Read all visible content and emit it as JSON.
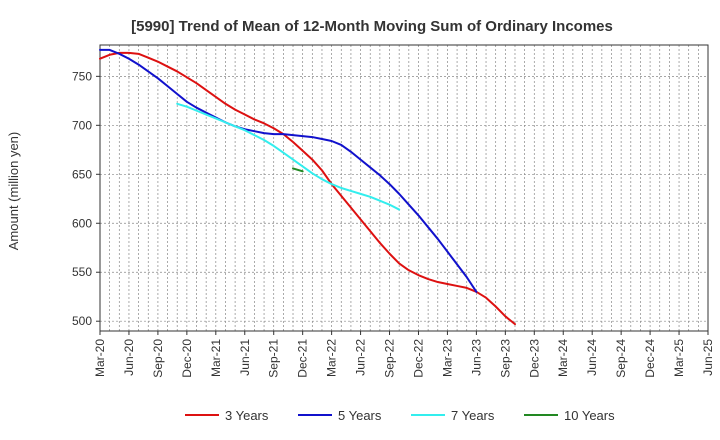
{
  "chart_data": {
    "type": "line",
    "title": "[5990]  Trend of Mean of 12-Month Moving Sum of Ordinary Incomes",
    "xlabel": "",
    "ylabel": "Amount (million yen)",
    "ylim": [
      490,
      782
    ],
    "yticks": [
      500,
      550,
      600,
      650,
      700,
      750
    ],
    "x_tick_labels": [
      "Mar-20",
      "Jun-20",
      "Sep-20",
      "Dec-20",
      "Mar-21",
      "Jun-21",
      "Sep-21",
      "Dec-21",
      "Mar-22",
      "Jun-22",
      "Sep-22",
      "Dec-22",
      "Mar-23",
      "Jun-23",
      "Sep-23",
      "Dec-23",
      "Mar-24",
      "Jun-24",
      "Sep-24",
      "Dec-24",
      "Mar-25",
      "Jun-25"
    ],
    "grid": true,
    "legend_position": "bottom",
    "series": [
      {
        "name": "3 Years",
        "color": "#dd1111",
        "start_index": 0,
        "values": [
          768,
          772,
          774,
          774,
          773,
          769,
          765,
          760,
          755,
          749,
          743,
          736,
          729,
          722,
          716,
          711,
          706,
          702,
          697,
          691,
          683,
          674,
          665,
          654,
          640,
          628,
          616,
          604,
          592,
          580,
          569,
          559,
          552,
          547,
          543,
          540,
          538,
          536,
          534,
          530,
          524,
          515,
          505,
          497
        ]
      },
      {
        "name": "5 Years",
        "color": "#1111cc",
        "start_index": 0,
        "values": [
          777,
          777,
          773,
          768,
          762,
          755,
          748,
          740,
          732,
          724,
          718,
          713,
          708,
          703,
          699,
          696,
          694,
          692,
          691,
          691,
          690,
          689,
          688,
          686,
          684,
          680,
          673,
          665,
          657,
          649,
          640,
          630,
          619,
          608,
          596,
          584,
          571,
          558,
          545,
          530
        ]
      },
      {
        "name": "7 Years",
        "color": "#33eeee",
        "start_index": 8,
        "values": [
          722,
          719,
          715,
          711,
          707,
          703,
          699,
          695,
          690,
          685,
          679,
          672,
          665,
          658,
          651,
          645,
          640,
          636,
          633,
          630,
          627,
          623,
          619,
          614
        ]
      },
      {
        "name": "10 Years",
        "color": "#228822",
        "start_index": 20,
        "values": [
          656,
          653
        ]
      }
    ]
  }
}
